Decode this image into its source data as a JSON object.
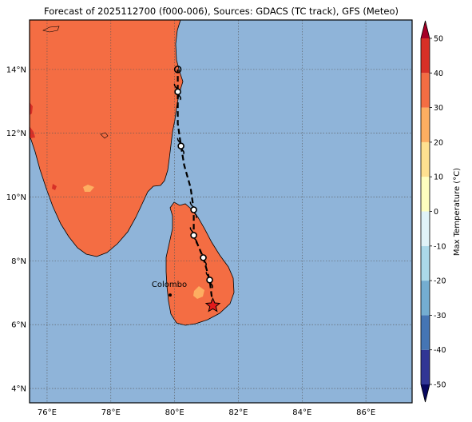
{
  "title": "Forecast of 2025112700 (f000-006), Sources: GDACS (TC track), GFS (Meteo)",
  "map": {
    "lon_range": [
      75.45,
      87.45
    ],
    "lat_range": [
      3.55,
      15.55
    ],
    "lon_ticks": [
      76,
      78,
      80,
      82,
      84,
      86
    ],
    "lon_tick_labels": [
      "76°E",
      "78°E",
      "80°E",
      "82°E",
      "84°E",
      "86°E"
    ],
    "lat_ticks": [
      4,
      6,
      8,
      10,
      12,
      14
    ],
    "lat_tick_labels": [
      "4°N",
      "6°N",
      "8°N",
      "10°N",
      "12°N",
      "14°N"
    ],
    "gridlines": true,
    "ocean_color": "#8fb4d9",
    "land_color": "#f46d43",
    "warm_patch_color": "#fdae61"
  },
  "city": {
    "name": "Colombo",
    "lon": 79.86,
    "lat": 6.93
  },
  "track": [
    {
      "lon": 81.2,
      "lat": 6.6,
      "marker": "star"
    },
    {
      "lon": 81.1,
      "lat": 7.4,
      "marker": "cyclone"
    },
    {
      "lon": 80.9,
      "lat": 8.1,
      "marker": "cyclone"
    },
    {
      "lon": 80.6,
      "lat": 8.8,
      "marker": "cyclone"
    },
    {
      "lon": 80.6,
      "lat": 9.6,
      "marker": "cyclone"
    },
    {
      "lon": 80.5,
      "lat": 10.3,
      "marker": "none"
    },
    {
      "lon": 80.3,
      "lat": 11.0,
      "marker": "none"
    },
    {
      "lon": 80.2,
      "lat": 11.6,
      "marker": "cyclone"
    },
    {
      "lon": 80.1,
      "lat": 12.3,
      "marker": "none"
    },
    {
      "lon": 80.1,
      "lat": 13.3,
      "marker": "cyclone"
    },
    {
      "lon": 80.1,
      "lat": 14.0,
      "marker": "circle"
    }
  ],
  "colorbar": {
    "label": "Max Temperature (°C)",
    "ticks": [
      50,
      40,
      30,
      20,
      10,
      0,
      -10,
      -20,
      -30,
      -40,
      -50
    ],
    "range": [
      -55,
      55
    ],
    "bins": [
      {
        "from": -55,
        "to": -50,
        "color": "#08085f"
      },
      {
        "from": -50,
        "to": -40,
        "color": "#313695"
      },
      {
        "from": -40,
        "to": -30,
        "color": "#4575b4"
      },
      {
        "from": -30,
        "to": -20,
        "color": "#74add1"
      },
      {
        "from": -20,
        "to": -10,
        "color": "#abd9e9"
      },
      {
        "from": -10,
        "to": 0,
        "color": "#e0f3f8"
      },
      {
        "from": 0,
        "to": 10,
        "color": "#ffffbf"
      },
      {
        "from": 10,
        "to": 20,
        "color": "#fee090"
      },
      {
        "from": 20,
        "to": 30,
        "color": "#fdae61"
      },
      {
        "from": 30,
        "to": 40,
        "color": "#f46d43"
      },
      {
        "from": 40,
        "to": 50,
        "color": "#d73027"
      },
      {
        "from": 50,
        "to": 55,
        "color": "#a50026"
      }
    ]
  }
}
